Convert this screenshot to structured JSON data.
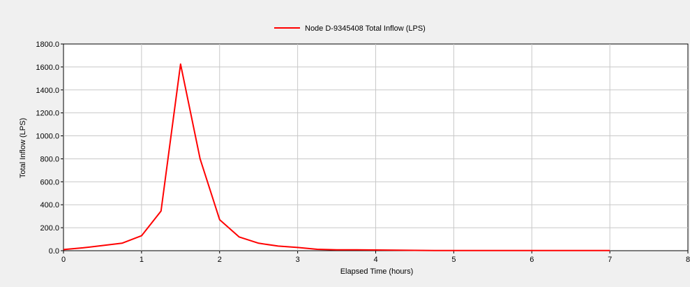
{
  "chart_data": {
    "type": "line",
    "title": "",
    "xlabel": "Elapsed Time (hours)",
    "ylabel": "Total Inflow (LPS)",
    "xlim": [
      0,
      8
    ],
    "ylim": [
      0,
      1800
    ],
    "x_ticks": [
      0,
      1,
      2,
      3,
      4,
      5,
      6,
      7,
      8
    ],
    "x_tick_labels": [
      "0",
      "1",
      "2",
      "3",
      "4",
      "5",
      "6",
      "7",
      "8"
    ],
    "y_ticks": [
      0,
      200,
      400,
      600,
      800,
      1000,
      1200,
      1400,
      1600,
      1800
    ],
    "y_tick_labels": [
      "0.0",
      "200.0",
      "400.0",
      "600.0",
      "800.0",
      "1000.0",
      "1200.0",
      "1400.0",
      "1600.0",
      "1800.0"
    ],
    "grid": true,
    "legend_position": "top-center",
    "series": [
      {
        "name": "Node D-9345408 Total Inflow (LPS)",
        "color": "#ff0000",
        "x": [
          0,
          0.25,
          0.5,
          0.75,
          1.0,
          1.25,
          1.5,
          1.75,
          2.0,
          2.25,
          2.5,
          2.75,
          3.0,
          3.25,
          3.5,
          3.75,
          4.0,
          4.25,
          4.5,
          4.75,
          5.0,
          5.5,
          6.0,
          6.5,
          7.0
        ],
        "y": [
          10,
          25,
          45,
          65,
          130,
          345,
          1625,
          800,
          270,
          120,
          65,
          40,
          28,
          12,
          8,
          7,
          6,
          5,
          3,
          2,
          2,
          2,
          1,
          1,
          1
        ]
      }
    ]
  }
}
